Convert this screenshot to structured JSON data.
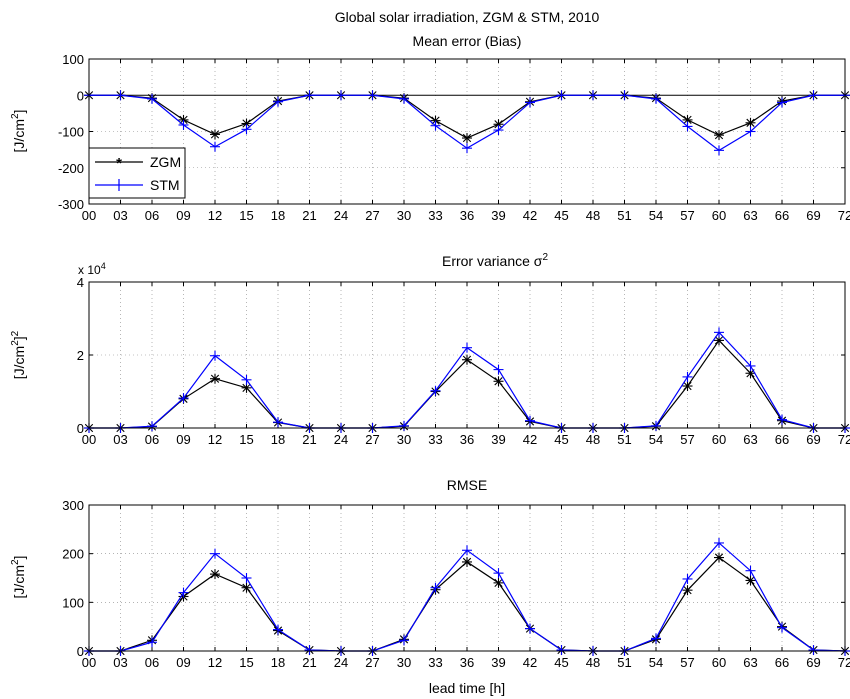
{
  "figure": {
    "title_line1": "Global solar irradiation, ZGM & STM, 2010",
    "title_line2": "Mean error (Bias)"
  },
  "colors": {
    "ZGM": "#000000",
    "STM": "#0000ff",
    "axis": "#000000",
    "grid": "#888888"
  },
  "chart_data": [
    {
      "type": "line",
      "title": "Mean error (Bias)",
      "xlabel": "",
      "ylabel": "[J/cm2]",
      "x_ticklabels": [
        "00",
        "03",
        "06",
        "09",
        "12",
        "15",
        "18",
        "21",
        "24",
        "27",
        "30",
        "33",
        "36",
        "39",
        "42",
        "45",
        "48",
        "51",
        "54",
        "57",
        "60",
        "63",
        "66",
        "69",
        "72"
      ],
      "x": [
        0,
        3,
        6,
        9,
        12,
        15,
        18,
        21,
        24,
        27,
        30,
        33,
        36,
        39,
        42,
        45,
        48,
        51,
        54,
        57,
        60,
        63,
        66,
        69,
        72
      ],
      "ylim": [
        -300,
        100
      ],
      "yticks": [
        -300,
        -200,
        -100,
        0,
        100
      ],
      "grid": true,
      "zero_line": true,
      "legend": {
        "position": "bottom-left"
      },
      "series": [
        {
          "name": "ZGM",
          "marker": "asterisk",
          "values": [
            0,
            0,
            -8,
            -68,
            -108,
            -78,
            -16,
            0,
            0,
            0,
            -8,
            -70,
            -118,
            -80,
            -18,
            0,
            0,
            0,
            -8,
            -68,
            -110,
            -76,
            -16,
            0,
            0
          ]
        },
        {
          "name": "STM",
          "marker": "plus",
          "values": [
            0,
            0,
            -10,
            -82,
            -142,
            -94,
            -18,
            0,
            0,
            0,
            -10,
            -84,
            -146,
            -96,
            -20,
            0,
            0,
            0,
            -10,
            -86,
            -152,
            -100,
            -20,
            0,
            0
          ]
        }
      ]
    },
    {
      "type": "line",
      "title": "Error variance σ²",
      "exponent_label": "x 10",
      "exponent_power": "4",
      "xlabel": "",
      "ylabel": "[J/cm2]2",
      "x_ticklabels": [
        "00",
        "03",
        "06",
        "09",
        "12",
        "15",
        "18",
        "21",
        "24",
        "27",
        "30",
        "33",
        "36",
        "39",
        "42",
        "45",
        "48",
        "51",
        "54",
        "57",
        "60",
        "63",
        "66",
        "69",
        "72"
      ],
      "x": [
        0,
        3,
        6,
        9,
        12,
        15,
        18,
        21,
        24,
        27,
        30,
        33,
        36,
        39,
        42,
        45,
        48,
        51,
        54,
        57,
        60,
        63,
        66,
        69,
        72
      ],
      "ylim": [
        0,
        40000
      ],
      "yticks": [
        0,
        20000,
        40000
      ],
      "ytick_labels": [
        "0",
        "2",
        "4"
      ],
      "grid": true,
      "series": [
        {
          "name": "ZGM",
          "marker": "asterisk",
          "values": [
            0,
            0,
            400,
            8000,
            13500,
            11000,
            1500,
            0,
            0,
            0,
            500,
            10000,
            18700,
            12800,
            1800,
            0,
            0,
            0,
            500,
            11500,
            24000,
            15000,
            2000,
            0,
            0
          ]
        },
        {
          "name": "STM",
          "marker": "plus",
          "values": [
            0,
            0,
            500,
            8200,
            19800,
            13200,
            1600,
            0,
            0,
            0,
            600,
            10200,
            22000,
            16000,
            2000,
            0,
            0,
            0,
            600,
            14000,
            26200,
            17000,
            2300,
            0,
            0
          ]
        }
      ]
    },
    {
      "type": "line",
      "title": "RMSE",
      "xlabel": "lead time [h]",
      "ylabel": "[J/cm2]",
      "x_ticklabels": [
        "00",
        "03",
        "06",
        "09",
        "12",
        "15",
        "18",
        "21",
        "24",
        "27",
        "30",
        "33",
        "36",
        "39",
        "42",
        "45",
        "48",
        "51",
        "54",
        "57",
        "60",
        "63",
        "66",
        "69",
        "72"
      ],
      "x": [
        0,
        3,
        6,
        9,
        12,
        15,
        18,
        21,
        24,
        27,
        30,
        33,
        36,
        39,
        42,
        45,
        48,
        51,
        54,
        57,
        60,
        63,
        66,
        69,
        72
      ],
      "ylim": [
        0,
        300
      ],
      "yticks": [
        0,
        100,
        200,
        300
      ],
      "grid": true,
      "series": [
        {
          "name": "ZGM",
          "marker": "asterisk",
          "values": [
            0,
            0,
            22,
            112,
            158,
            130,
            42,
            2,
            0,
            0,
            24,
            126,
            183,
            140,
            46,
            2,
            0,
            0,
            24,
            125,
            192,
            145,
            50,
            2,
            0
          ]
        },
        {
          "name": "STM",
          "marker": "plus",
          "values": [
            0,
            0,
            18,
            120,
            200,
            150,
            44,
            2,
            0,
            0,
            22,
            130,
            207,
            160,
            46,
            2,
            0,
            0,
            26,
            148,
            222,
            165,
            48,
            2,
            0
          ]
        }
      ]
    }
  ]
}
